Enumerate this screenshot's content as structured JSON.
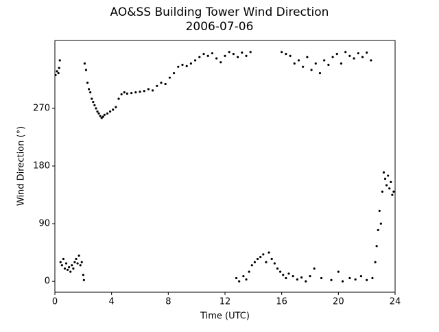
{
  "chart_data": {
    "type": "scatter",
    "title": "AO&SS Building Tower Wind Direction",
    "subtitle": "2006-07-06",
    "xlabel": "Time (UTC)",
    "ylabel": "Wind Direction (°)",
    "color": "#000000",
    "xlim": [
      0,
      24
    ],
    "xticks": [
      0,
      4,
      8,
      12,
      16,
      20,
      24
    ],
    "ylim": [
      -17,
      376
    ],
    "yticks": [
      0,
      90,
      180,
      270
    ],
    "x": [
      0.05,
      0.15,
      0.25,
      0.3,
      0.35,
      0.4,
      0.5,
      0.6,
      0.7,
      0.8,
      0.9,
      1.0,
      1.1,
      1.2,
      1.3,
      1.4,
      1.5,
      1.6,
      1.7,
      1.8,
      1.9,
      2.0,
      2.05,
      2.1,
      2.2,
      2.3,
      2.4,
      2.5,
      2.6,
      2.7,
      2.8,
      2.9,
      3.0,
      3.1,
      3.2,
      3.3,
      3.4,
      3.5,
      3.7,
      3.9,
      4.1,
      4.3,
      4.5,
      4.7,
      4.9,
      5.1,
      5.4,
      5.7,
      6.0,
      6.3,
      6.6,
      6.9,
      7.2,
      7.5,
      7.8,
      8.1,
      8.4,
      8.7,
      9.0,
      9.3,
      9.6,
      9.9,
      10.2,
      10.5,
      10.8,
      11.1,
      11.4,
      11.7,
      12.0,
      12.3,
      12.6,
      12.9,
      13.2,
      13.5,
      13.8,
      12.8,
      13.0,
      13.3,
      13.5,
      13.7,
      13.9,
      14.1,
      14.3,
      14.5,
      14.7,
      14.9,
      15.1,
      15.3,
      15.5,
      15.7,
      15.9,
      16.1,
      16.3,
      16.5,
      16.8,
      17.1,
      17.4,
      17.7,
      18.0,
      18.3,
      16.0,
      16.3,
      16.6,
      16.9,
      17.2,
      17.5,
      17.8,
      18.1,
      18.4,
      18.7,
      19.0,
      19.3,
      19.6,
      19.9,
      20.2,
      20.5,
      20.8,
      21.1,
      21.4,
      21.7,
      22.0,
      22.3,
      18.8,
      19.5,
      20.0,
      20.3,
      20.8,
      21.2,
      21.6,
      22.0,
      22.4,
      22.6,
      22.7,
      22.8,
      22.9,
      23.0,
      23.1,
      23.2,
      23.3,
      23.4,
      23.5,
      23.6,
      23.7,
      23.8,
      23.9
    ],
    "values": [
      322,
      328,
      325,
      333,
      345,
      30,
      25,
      35,
      20,
      28,
      18,
      22,
      15,
      25,
      20,
      30,
      35,
      28,
      40,
      25,
      30,
      10,
      2,
      340,
      330,
      310,
      300,
      295,
      285,
      280,
      275,
      270,
      265,
      262,
      258,
      255,
      257,
      260,
      262,
      265,
      268,
      272,
      285,
      292,
      295,
      293,
      294,
      295,
      296,
      297,
      300,
      298,
      305,
      310,
      308,
      318,
      325,
      335,
      338,
      336,
      340,
      345,
      350,
      355,
      352,
      356,
      348,
      342,
      352,
      358,
      355,
      350,
      357,
      352,
      358,
      5,
      0,
      8,
      3,
      15,
      25,
      30,
      35,
      38,
      42,
      30,
      45,
      35,
      28,
      20,
      15,
      10,
      5,
      12,
      8,
      3,
      6,
      0,
      8,
      20,
      358,
      355,
      352,
      340,
      345,
      335,
      350,
      330,
      340,
      325,
      345,
      338,
      350,
      355,
      340,
      358,
      352,
      348,
      356,
      350,
      357,
      345,
      5,
      2,
      15,
      0,
      5,
      3,
      8,
      2,
      5,
      30,
      55,
      80,
      110,
      90,
      140,
      170,
      160,
      150,
      165,
      145,
      155,
      135,
      140
    ]
  }
}
